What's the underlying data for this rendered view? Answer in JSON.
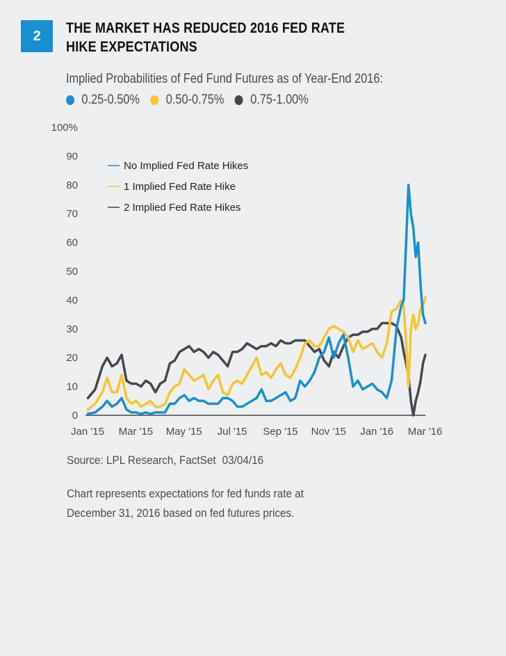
{
  "badge": "2",
  "title_lines": [
    "THE MARKET HAS REDUCED 2016 FED RATE",
    "HIKE EXPECTATIONS"
  ],
  "subtitle": "Implied Probabilities of Fed Fund Futures as of Year-End 2016:",
  "rate_legend": [
    {
      "label": "0.25-0.50%",
      "color": "#1a8fd0"
    },
    {
      "label": "0.50-0.75%",
      "color": "#f5c533"
    },
    {
      "label": "0.75-1.00%",
      "color": "#45474d"
    }
  ],
  "source": "Source: LPL Research, FactSet",
  "source_date": "03/04/16",
  "note_lines": [
    "Chart represents expectations for fed funds rate at",
    "December 31, 2016 based on fed futures prices."
  ],
  "chart_data": {
    "type": "line",
    "title": "Implied Probabilities of Fed Fund Futures as of Year-End 2016",
    "xlabel": "",
    "ylabel": "",
    "ylim": [
      0,
      100
    ],
    "yticks": [
      "0",
      "10",
      "20",
      "30",
      "40",
      "50",
      "60",
      "70",
      "80",
      "90",
      "100%"
    ],
    "yvalues": [
      0,
      10,
      20,
      30,
      40,
      50,
      60,
      70,
      80,
      90,
      100
    ],
    "xticks": [
      "Jan '15",
      "Mar '15",
      "May '15",
      "Jul '15",
      "Sep '15",
      "Nov '15",
      "Jan '16",
      "Mar '16"
    ],
    "xtick_months": [
      0,
      2,
      4,
      6,
      8,
      10,
      12,
      14
    ],
    "xrange_months": [
      0,
      14.1
    ],
    "grid": false,
    "legend_position": "top-left",
    "x_months": [
      0.1,
      0.4,
      0.7,
      0.9,
      1.1,
      1.3,
      1.5,
      1.7,
      1.9,
      2.1,
      2.3,
      2.5,
      2.7,
      2.9,
      3.1,
      3.3,
      3.5,
      3.7,
      3.9,
      4.1,
      4.3,
      4.5,
      4.7,
      4.9,
      5.1,
      5.3,
      5.5,
      5.7,
      5.9,
      6.1,
      6.3,
      6.5,
      6.7,
      6.9,
      7.1,
      7.3,
      7.5,
      7.7,
      7.9,
      8.1,
      8.3,
      8.5,
      8.7,
      8.9,
      9.1,
      9.3,
      9.5,
      9.7,
      9.9,
      10.1,
      10.3,
      10.5,
      10.7,
      10.9,
      11.1,
      11.3,
      11.5,
      11.7,
      11.9,
      12.1,
      12.3,
      12.5,
      12.7,
      12.9,
      13.1,
      13.2,
      13.3,
      13.4,
      13.5,
      13.6,
      13.7,
      13.8,
      13.9,
      14.0,
      14.1
    ],
    "series": [
      {
        "name": "No Implied Fed Rate Hikes",
        "color": "#1a8fd0",
        "values": [
          0.5,
          1,
          3,
          5,
          3,
          4,
          6,
          2,
          1,
          1,
          0.5,
          1,
          0.5,
          1,
          1,
          1,
          4,
          4,
          6,
          7,
          5,
          6,
          5,
          5,
          4,
          4,
          4,
          6,
          6,
          5,
          3,
          3,
          4,
          5,
          6,
          9,
          5,
          5,
          6,
          7,
          8,
          5,
          6,
          12,
          10,
          12,
          15,
          20,
          22,
          27,
          20,
          25,
          28,
          20,
          10,
          12,
          9,
          10,
          11,
          9,
          8,
          6,
          12,
          30,
          38,
          40,
          60,
          80,
          70,
          65,
          55,
          60,
          45,
          35,
          32
        ]
      },
      {
        "name": "1 Implied Fed Rate Hike",
        "color": "#f5c533",
        "values": [
          2,
          4,
          8,
          13,
          8,
          8,
          14,
          6,
          4,
          5,
          3,
          4,
          5,
          3,
          3,
          4,
          8,
          10,
          11,
          16,
          14,
          12,
          13,
          14,
          9,
          12,
          14,
          8,
          7,
          11,
          12,
          11,
          14,
          17,
          20,
          14,
          15,
          13,
          16,
          18,
          14,
          13,
          16,
          20,
          25,
          26,
          24,
          24,
          27,
          30,
          31,
          30,
          29,
          27,
          22,
          26,
          23,
          24,
          25,
          22,
          20,
          25,
          36,
          37,
          40,
          38,
          25,
          10,
          30,
          35,
          30,
          32,
          37,
          38,
          41
        ]
      },
      {
        "name": "2 Implied Fed Rate Hikes",
        "color": "#45474d",
        "values": [
          6,
          9,
          17,
          20,
          17,
          18,
          21,
          12,
          11,
          11,
          10,
          12,
          11,
          8,
          11,
          12,
          18,
          19,
          22,
          23,
          24,
          22,
          23,
          22,
          20,
          22,
          21,
          19,
          17,
          22,
          22,
          23,
          25,
          24,
          23,
          24,
          24,
          25,
          24,
          26,
          25,
          25,
          26,
          26,
          26,
          24,
          22,
          23,
          19,
          17,
          22,
          20,
          24,
          27,
          28,
          28,
          29,
          29,
          30,
          30,
          32,
          32,
          32,
          31,
          27,
          22,
          18,
          14,
          5,
          0,
          5,
          8,
          12,
          18,
          21
        ]
      }
    ]
  }
}
